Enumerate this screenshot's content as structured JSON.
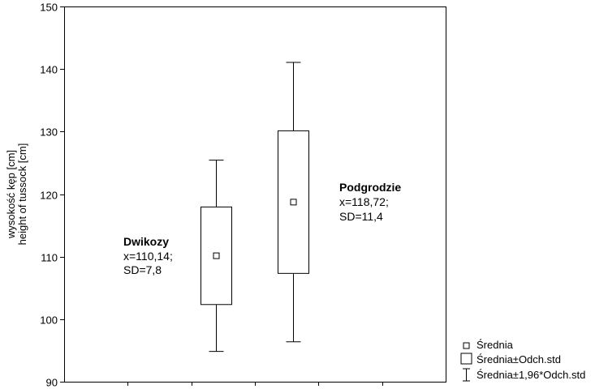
{
  "chart_data": {
    "type": "boxplot",
    "ylabel": [
      "wysokość kęp [cm]",
      "height of tussock [cm]"
    ],
    "ylim": [
      90,
      150
    ],
    "yticks": [
      90,
      100,
      110,
      120,
      130,
      140,
      150
    ],
    "grid": false,
    "legend_position": "bottom-right",
    "series": [
      {
        "name": "Dwikozy",
        "mean": 110.14,
        "sd_low": 102.34,
        "sd_high": 117.94,
        "whisker_low": 94.85,
        "whisker_high": 125.43
      },
      {
        "name": "Podgrodzie",
        "mean": 118.72,
        "sd_low": 107.32,
        "sd_high": 130.12,
        "whisker_low": 96.38,
        "whisker_high": 141.06
      }
    ],
    "annotations": [
      {
        "title": "Dwikozy",
        "lines": [
          "x=110,14;",
          "SD=7,8"
        ]
      },
      {
        "title": "Podgrodzie",
        "lines": [
          "x=118,72;",
          "SD=11,4"
        ]
      }
    ],
    "legend": [
      {
        "label": "Średnia",
        "symbol": "mean-marker"
      },
      {
        "label": "Średnia±Odch.std",
        "symbol": "box"
      },
      {
        "label": "Średnia±1,96*Odch.std",
        "symbol": "whisker"
      }
    ]
  }
}
